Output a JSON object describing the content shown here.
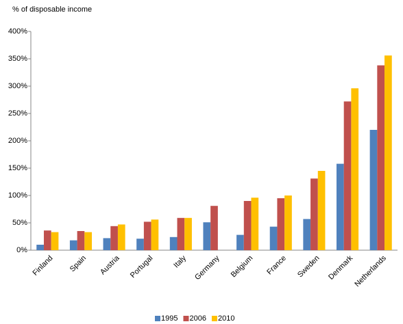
{
  "chart_data": {
    "type": "bar",
    "y_axis_label": "% of disposable income",
    "categories": [
      "Finland",
      "Spain",
      "Austria",
      "Portugal",
      "Italy",
      "Germany",
      "Belgium",
      "France",
      "Sweden",
      "Denmark",
      "Netherlands"
    ],
    "series": [
      {
        "name": "1995",
        "color": "#4f81bd",
        "values": [
          10,
          18,
          22,
          21,
          24,
          51,
          28,
          43,
          57,
          158,
          220
        ]
      },
      {
        "name": "2006",
        "color": "#c0504d",
        "values": [
          36,
          35,
          44,
          52,
          59,
          81,
          90,
          95,
          131,
          272,
          338
        ]
      },
      {
        "name": "2010",
        "color": "#ffc000",
        "values": [
          33,
          33,
          47,
          56,
          59,
          null,
          96,
          100,
          145,
          296,
          356
        ]
      }
    ],
    "ylim": [
      0,
      400
    ],
    "yticks": [
      {
        "value": 0,
        "label": "0%"
      },
      {
        "value": 50,
        "label": "50%"
      },
      {
        "value": 100,
        "label": "100%"
      },
      {
        "value": 150,
        "label": "150%"
      },
      {
        "value": 200,
        "label": "200%"
      },
      {
        "value": 250,
        "label": "250%"
      },
      {
        "value": 300,
        "label": "300%"
      },
      {
        "value": 350,
        "label": "350%"
      },
      {
        "value": 400,
        "label": "400%"
      }
    ],
    "grid": false,
    "legend": "bottom"
  }
}
